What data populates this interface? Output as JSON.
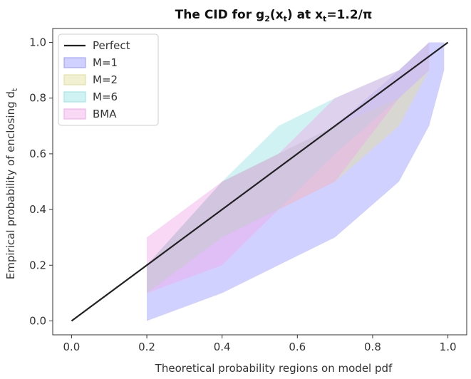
{
  "chart_data": {
    "type": "area",
    "title_parts": {
      "prefix": "The CID for g",
      "g_sub": "2",
      "mid": "(x",
      "x_sub": "t",
      "mid2": ") at x",
      "x_sub2": "t",
      "suffix": "=1.2/π"
    },
    "xlabel": "Theoretical probability regions on model pdf",
    "ylabel_main": "Empirical probability of enclosing d",
    "ylabel_sub": "t",
    "xlim": [
      -0.05,
      1.05
    ],
    "ylim": [
      -0.05,
      1.05
    ],
    "xticks": [
      0.0,
      0.2,
      0.4,
      0.6,
      0.8,
      1.0
    ],
    "xtick_labels": [
      "0.0",
      "0.2",
      "0.4",
      "0.6",
      "0.8",
      "1.0"
    ],
    "yticks": [
      0.0,
      0.2,
      0.4,
      0.6,
      0.8,
      1.0
    ],
    "ytick_labels": [
      "0.0",
      "0.2",
      "0.4",
      "0.6",
      "0.8",
      "1.0"
    ],
    "grid": false,
    "legend_position": "upper-left",
    "perfect": {
      "name": "Perfect",
      "color": "#222222",
      "x": [
        0.0,
        1.0
      ],
      "y": [
        0.0,
        1.0
      ]
    },
    "series": [
      {
        "name": "M=1",
        "color": "#9999ff",
        "x": [
          0.2,
          0.4,
          0.55,
          0.7,
          0.87,
          0.95,
          0.99
        ],
        "lower": [
          0.0,
          0.1,
          0.2,
          0.3,
          0.5,
          0.7,
          0.9
        ],
        "upper": [
          0.2,
          0.5,
          0.6,
          0.7,
          0.9,
          1.0,
          1.0
        ]
      },
      {
        "name": "M=2",
        "color": "#e0dd9a",
        "x": [
          0.2,
          0.4,
          0.55,
          0.7,
          0.87,
          0.95
        ],
        "lower": [
          0.1,
          0.3,
          0.4,
          0.5,
          0.7,
          0.9
        ],
        "upper": [
          0.2,
          0.5,
          0.6,
          0.7,
          0.8,
          0.9
        ]
      },
      {
        "name": "M=6",
        "color": "#96e2e2",
        "x": [
          0.2,
          0.4,
          0.55,
          0.7,
          0.87,
          0.95
        ],
        "lower": [
          0.1,
          0.3,
          0.4,
          0.6,
          0.8,
          0.9
        ],
        "upper": [
          0.2,
          0.5,
          0.7,
          0.8,
          0.9,
          1.0
        ]
      },
      {
        "name": "BMA",
        "color": "#f0a8e8",
        "x": [
          0.2,
          0.4,
          0.55,
          0.7,
          0.87,
          0.95
        ],
        "lower": [
          0.1,
          0.2,
          0.4,
          0.5,
          0.8,
          0.9
        ],
        "upper": [
          0.3,
          0.5,
          0.6,
          0.8,
          0.9,
          1.0
        ]
      }
    ]
  }
}
